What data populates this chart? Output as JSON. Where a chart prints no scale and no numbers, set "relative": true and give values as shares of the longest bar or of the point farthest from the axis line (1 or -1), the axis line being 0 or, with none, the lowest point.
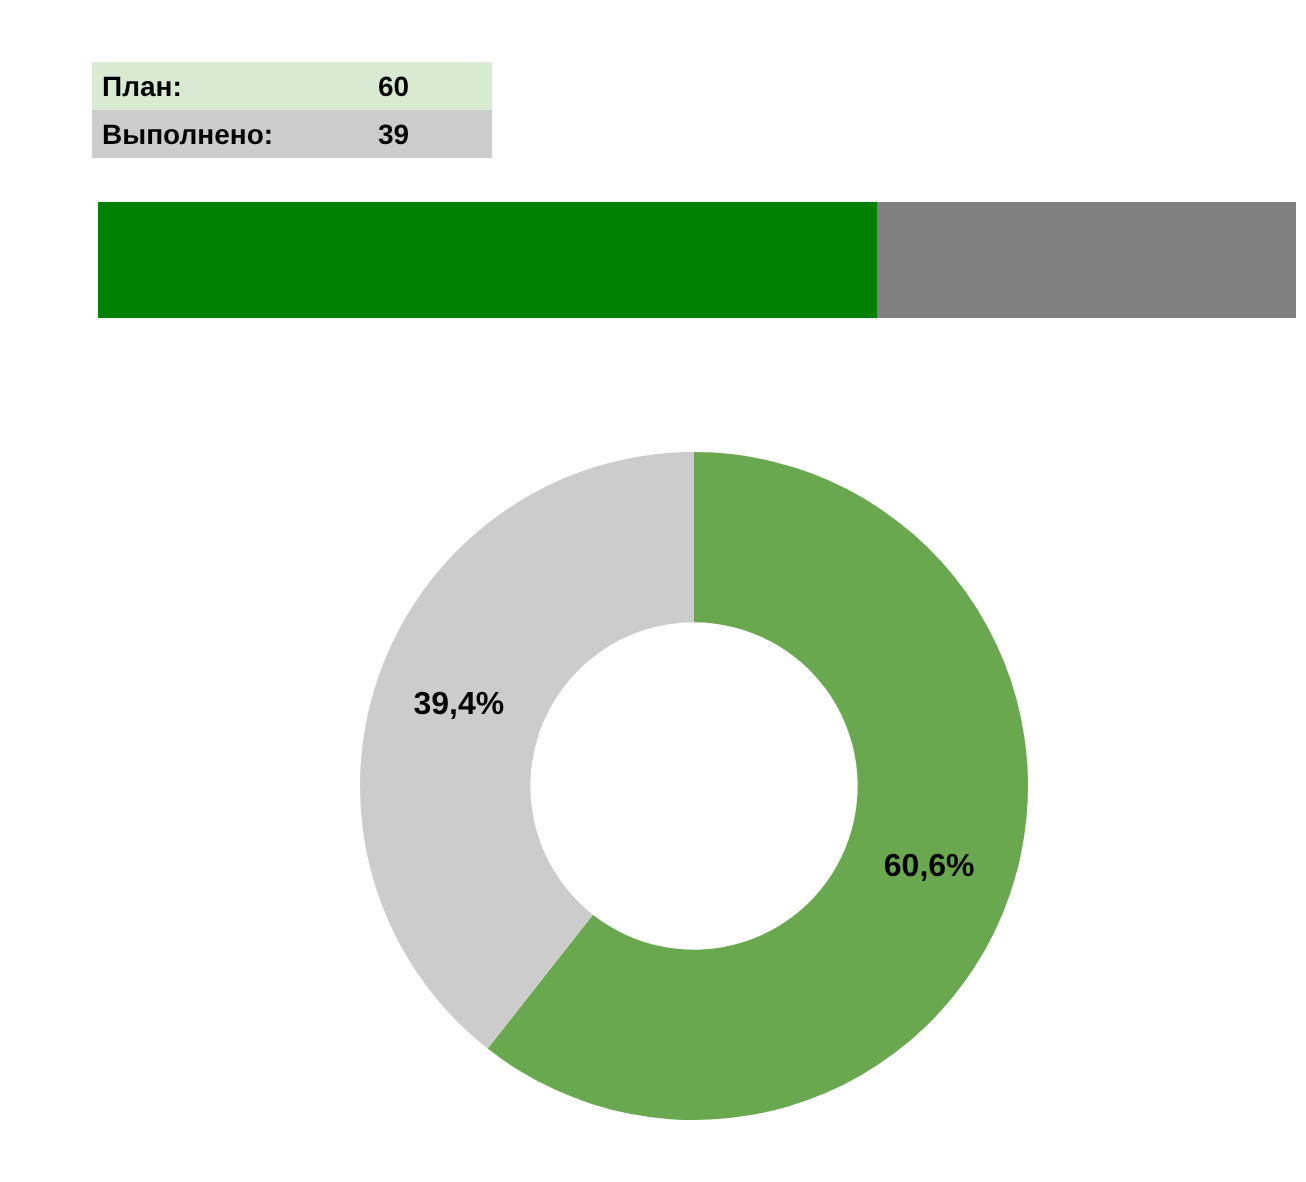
{
  "chart_data": [
    {
      "type": "other",
      "annotations": [
        "План:",
        "60",
        "Выполнено:",
        "39"
      ]
    },
    {
      "type": "bar",
      "orientation": "horizontal",
      "stacked": true,
      "relative": true,
      "categories": [
        null
      ],
      "series": [
        {
          "color": "#008000",
          "values": [
            0.65
          ]
        },
        {
          "color": "#808080",
          "values": [
            0.35
          ]
        }
      ]
    },
    {
      "type": "donut",
      "categories": [
        null,
        null
      ],
      "values": [
        60.6,
        39.4
      ],
      "colors": [
        "#6aa84f",
        "#cccccc"
      ],
      "value_labels": [
        "60,6%",
        "39,4%"
      ]
    }
  ]
}
